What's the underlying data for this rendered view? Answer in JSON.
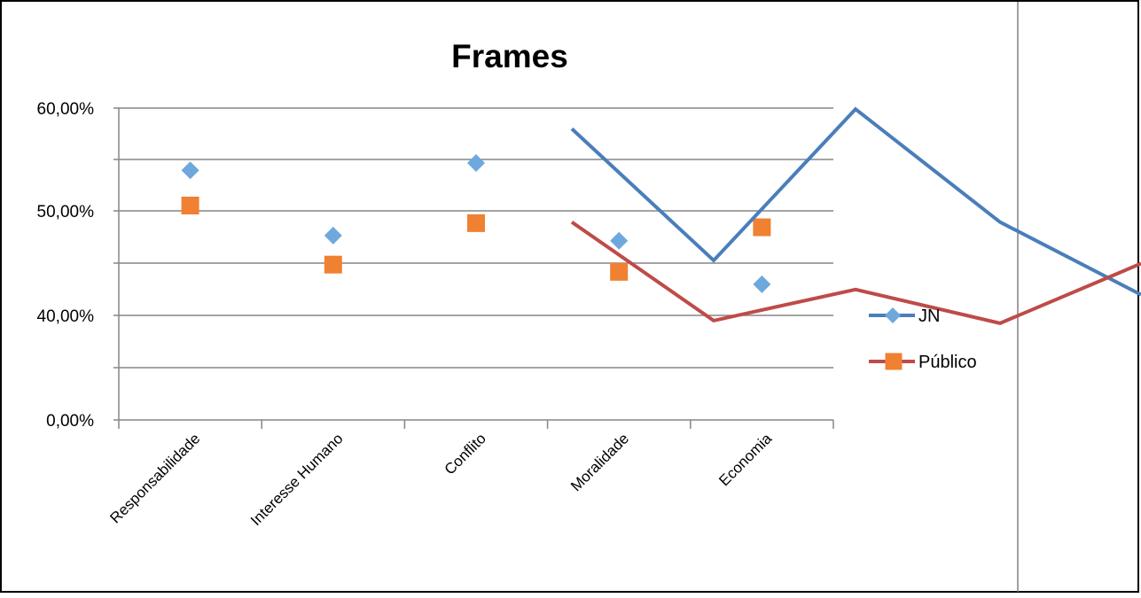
{
  "chart_data": {
    "type": "scatter",
    "title": "Frames",
    "categories": [
      "Responsabilidade",
      "Interesse Humano",
      "Conflito",
      "Moralidade",
      "Economia"
    ],
    "y_ticks": [
      "0,00%",
      "40,00%",
      "50,00%",
      "60,00%"
    ],
    "series": [
      {
        "name": "JN",
        "color": "#6FA8DC",
        "marker": "diamond",
        "values": [
          0.54,
          0.477,
          0.547,
          0.472,
          0.43
        ]
      },
      {
        "name": "Público",
        "color": "#F08032",
        "marker": "square",
        "values": [
          0.506,
          0.449,
          0.489,
          0.442,
          0.485
        ]
      }
    ],
    "ylim": [
      0,
      0.6
    ],
    "grid": true,
    "legend_position": "right",
    "overlay_lines": [
      {
        "name": "JN",
        "color": "#4A7EBB",
        "values": [
          0.58,
          0.453,
          0.599,
          0.49,
          0.42
        ]
      },
      {
        "name": "Público",
        "color": "#BE4B48",
        "values": [
          0.49,
          0.38,
          0.425,
          0.37,
          0.45
        ]
      }
    ]
  }
}
